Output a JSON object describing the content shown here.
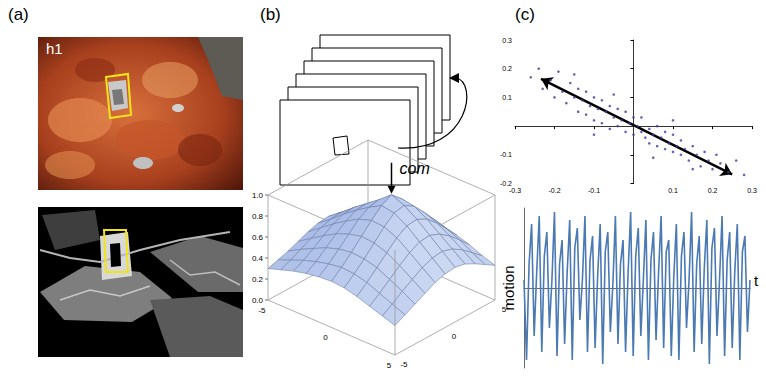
{
  "panel_labels": [
    "(a)",
    "(b)",
    "(c)"
  ],
  "panel_a": {
    "image_label": "h1"
  },
  "panel_b": {
    "surface": {
      "type": "surface",
      "annotation": "com",
      "x": [
        -5,
        -4,
        -3,
        -2,
        -1,
        0,
        1,
        2,
        3,
        4,
        5
      ],
      "y": [
        -5,
        -4,
        -3,
        -2,
        -1,
        0,
        1,
        2,
        3,
        4,
        5
      ],
      "z": [
        [
          0.3,
          0.33,
          0.36,
          0.4,
          0.44,
          0.47,
          0.48,
          0.46,
          0.42,
          0.37,
          0.32
        ],
        [
          0.34,
          0.38,
          0.43,
          0.48,
          0.53,
          0.56,
          0.57,
          0.55,
          0.5,
          0.44,
          0.37
        ],
        [
          0.38,
          0.43,
          0.49,
          0.56,
          0.62,
          0.66,
          0.67,
          0.64,
          0.58,
          0.5,
          0.42
        ],
        [
          0.41,
          0.47,
          0.55,
          0.63,
          0.7,
          0.75,
          0.76,
          0.72,
          0.65,
          0.56,
          0.46
        ],
        [
          0.43,
          0.5,
          0.59,
          0.68,
          0.77,
          0.83,
          0.85,
          0.8,
          0.71,
          0.6,
          0.49
        ],
        [
          0.44,
          0.52,
          0.61,
          0.71,
          0.81,
          0.9,
          0.95,
          0.86,
          0.74,
          0.62,
          0.5
        ],
        [
          0.43,
          0.51,
          0.6,
          0.7,
          0.8,
          0.88,
          0.9,
          0.84,
          0.73,
          0.61,
          0.49
        ],
        [
          0.4,
          0.48,
          0.57,
          0.66,
          0.75,
          0.81,
          0.82,
          0.77,
          0.68,
          0.57,
          0.46
        ],
        [
          0.36,
          0.43,
          0.51,
          0.59,
          0.66,
          0.71,
          0.72,
          0.68,
          0.61,
          0.52,
          0.42
        ],
        [
          0.32,
          0.38,
          0.45,
          0.51,
          0.57,
          0.61,
          0.62,
          0.59,
          0.53,
          0.45,
          0.37
        ],
        [
          0.28,
          0.33,
          0.38,
          0.43,
          0.48,
          0.51,
          0.52,
          0.5,
          0.45,
          0.39,
          0.33
        ]
      ],
      "xlim": [
        -5,
        5
      ],
      "ylim": [
        -5,
        5
      ],
      "zlim": [
        0,
        1
      ],
      "xticks": [
        -5,
        0,
        5
      ],
      "yticks": [
        -5,
        0,
        5
      ],
      "zticks": [
        {
          "value": 0,
          "label": "0.0"
        },
        {
          "value": 0.2,
          "label": "0.2"
        },
        {
          "value": 0.4,
          "label": "0.4"
        },
        {
          "value": 0.6,
          "label": "0.6"
        },
        {
          "value": 0.8,
          "label": "0.8"
        },
        {
          "value": 1,
          "label": "1.0"
        }
      ],
      "color": "#cfdcf2"
    }
  },
  "chart_data": [
    {
      "type": "scatter",
      "color": "#3c3c9c",
      "marker": "circle",
      "grid": false,
      "values": [
        [
          -0.26,
          0.17
        ],
        [
          -0.24,
          0.2
        ],
        [
          -0.23,
          0.13
        ],
        [
          -0.21,
          0.16
        ],
        [
          -0.2,
          0.1
        ],
        [
          -0.19,
          0.19
        ],
        [
          -0.18,
          0.12
        ],
        [
          -0.17,
          0.08
        ],
        [
          -0.16,
          0.15
        ],
        [
          -0.15,
          0.1
        ],
        [
          -0.14,
          0.05
        ],
        [
          -0.14,
          0.13
        ],
        [
          -0.13,
          0.09
        ],
        [
          -0.12,
          0.12
        ],
        [
          -0.12,
          0.04
        ],
        [
          -0.11,
          0.07
        ],
        [
          -0.1,
          0.1
        ],
        [
          -0.1,
          0.02
        ],
        [
          -0.09,
          0.06
        ],
        [
          -0.08,
          0.09
        ],
        [
          -0.08,
          0.01
        ],
        [
          -0.07,
          0.05
        ],
        [
          -0.06,
          0.07
        ],
        [
          -0.06,
          -0.01
        ],
        [
          -0.05,
          0.03
        ],
        [
          -0.04,
          0.06
        ],
        [
          -0.04,
          0.0
        ],
        [
          -0.03,
          0.02
        ],
        [
          -0.02,
          0.05
        ],
        [
          -0.02,
          -0.02
        ],
        [
          -0.01,
          0.01
        ],
        [
          0,
          0.03
        ],
        [
          0,
          -0.03
        ],
        [
          0.01,
          0.0
        ],
        [
          0.02,
          -0.02
        ],
        [
          0.02,
          0.03
        ],
        [
          0.03,
          -0.04
        ],
        [
          0.04,
          -0.01
        ],
        [
          0.04,
          -0.06
        ],
        [
          0.05,
          -0.03
        ],
        [
          0.06,
          0.0
        ],
        [
          0.06,
          -0.07
        ],
        [
          0.07,
          -0.04
        ],
        [
          0.08,
          -0.08
        ],
        [
          0.08,
          -0.02
        ],
        [
          0.09,
          -0.06
        ],
        [
          0.1,
          -0.09
        ],
        [
          0.1,
          -0.03
        ],
        [
          0.11,
          -0.07
        ],
        [
          0.12,
          -0.1
        ],
        [
          0.12,
          -0.05
        ],
        [
          0.13,
          -0.08
        ],
        [
          0.14,
          -0.12
        ],
        [
          0.15,
          -0.07
        ],
        [
          0.16,
          -0.1
        ],
        [
          0.17,
          -0.14
        ],
        [
          0.18,
          -0.09
        ],
        [
          0.19,
          -0.12
        ],
        [
          0.2,
          -0.15
        ],
        [
          0.21,
          -0.1
        ],
        [
          0.22,
          -0.13
        ],
        [
          0.24,
          -0.16
        ],
        [
          0.26,
          -0.12
        ],
        [
          0.28,
          -0.17
        ],
        [
          -0.05,
          0.11
        ],
        [
          0.05,
          -0.11
        ],
        [
          -0.15,
          0.18
        ],
        [
          0.15,
          -0.15
        ],
        [
          -0.1,
          -0.03
        ],
        [
          0.1,
          0.02
        ]
      ],
      "xlim": [
        -0.3,
        0.3
      ],
      "ylim": [
        -0.2,
        0.3
      ],
      "xticks": [
        -0.3,
        -0.2,
        -0.1,
        0.1,
        0.2,
        0.3
      ],
      "yticks": [
        -0.2,
        -0.1,
        0.1,
        0.2,
        0.3
      ]
    },
    {
      "type": "line",
      "x_label": "t",
      "y_label": "motion",
      "color": "#4a79b3",
      "tick_labels": false,
      "grid": false,
      "x": [
        0,
        1,
        2,
        3,
        4,
        5,
        6,
        7,
        8,
        9,
        10,
        11,
        12,
        13,
        14,
        15,
        16,
        17,
        18,
        19,
        20,
        21,
        22,
        23,
        24,
        25,
        26,
        27,
        28,
        29,
        30,
        31,
        32,
        33,
        34,
        35,
        36,
        37,
        38,
        39,
        40,
        41,
        42,
        43,
        44,
        45,
        46,
        47,
        48,
        49,
        50,
        51,
        52,
        53,
        54,
        55,
        56,
        57,
        58,
        59,
        60,
        61,
        62,
        63,
        64,
        65,
        66,
        67,
        68,
        69,
        70,
        71,
        72,
        73,
        74,
        75,
        76,
        77,
        78,
        79,
        80,
        81,
        82,
        83,
        84,
        85,
        86,
        87,
        88,
        89
      ],
      "values": [
        0.1,
        -0.9,
        0.3,
        0.8,
        -0.6,
        0.2,
        0.9,
        -0.8,
        0.4,
        0.7,
        -0.5,
        0.1,
        0.95,
        -0.85,
        0.3,
        0.6,
        -0.7,
        0.2,
        0.85,
        -0.9,
        0.5,
        0.75,
        -0.4,
        0.1,
        0.9,
        -0.8,
        0.35,
        0.65,
        -0.75,
        0.15,
        0.8,
        -0.95,
        0.45,
        0.7,
        -0.55,
        0.05,
        0.9,
        -0.7,
        0.3,
        0.6,
        -0.8,
        0.2,
        0.95,
        -0.85,
        0.4,
        0.75,
        -0.6,
        0.1,
        0.85,
        -0.9,
        0.35,
        0.7,
        -0.65,
        0.2,
        0.9,
        -0.75,
        0.45,
        0.6,
        -0.85,
        0.15,
        0.8,
        -0.9,
        0.4,
        0.7,
        -0.5,
        0.1,
        0.95,
        -0.8,
        0.3,
        0.65,
        -0.7,
        0.25,
        0.85,
        -0.95,
        0.5,
        0.75,
        -0.6,
        0.1,
        0.9,
        -0.85,
        0.35,
        0.7,
        -0.75,
        0.2,
        0.8,
        -0.9,
        0.45,
        0.65,
        -0.55,
        0.1
      ],
      "xlim": [
        0,
        89
      ],
      "ylim": [
        -1,
        1
      ]
    }
  ]
}
